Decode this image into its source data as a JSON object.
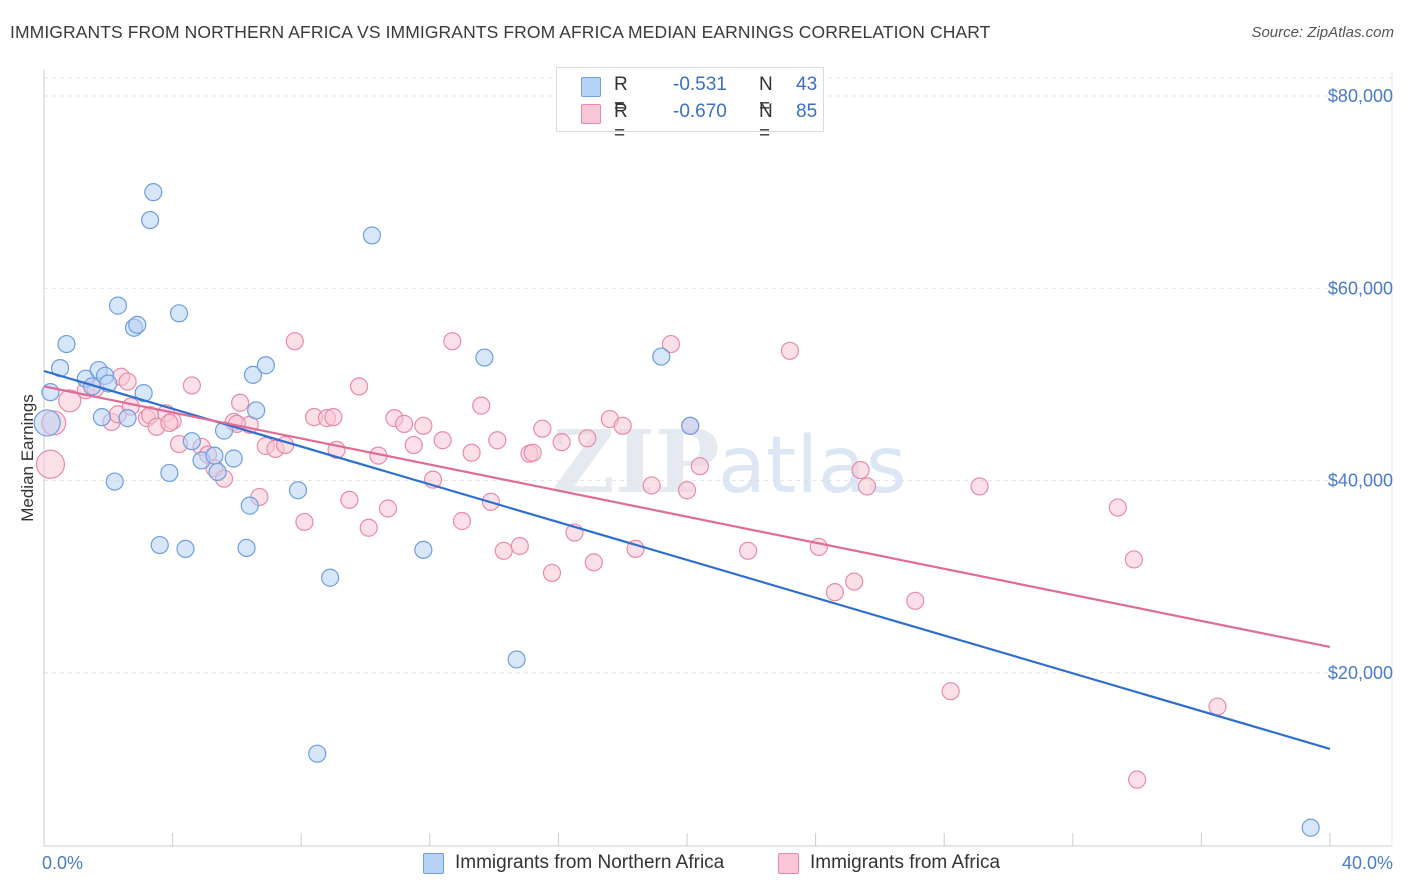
{
  "title": "IMMIGRANTS FROM NORTHERN AFRICA VS IMMIGRANTS FROM AFRICA MEDIAN EARNINGS CORRELATION CHART",
  "source": "Source: ZipAtlas.com",
  "watermark": {
    "zip": "ZIP",
    "atlas": "atlas"
  },
  "legend": {
    "series1": {
      "r_label": "R =",
      "r_value": "-0.531",
      "n_label": "N =",
      "n_value": "43"
    },
    "series2": {
      "r_label": "R =",
      "r_value": "-0.670",
      "n_label": "N =",
      "n_value": "85"
    }
  },
  "colors": {
    "blue_fill": "#b8d2f5",
    "blue_stroke": "#6d9ee0",
    "blue_line": "#2e6fd0",
    "pink_fill": "#f8c6d6",
    "pink_stroke": "#e88ba8",
    "pink_line": "#e06c96",
    "grid": "#e3e3e3",
    "axis_label": "#4a7cc9"
  },
  "chart_data": {
    "type": "scatter",
    "title": "IMMIGRANTS FROM NORTHERN AFRICA VS IMMIGRANTS FROM AFRICA MEDIAN EARNINGS CORRELATION CHART",
    "xlabel": "",
    "ylabel": "Median Earnings",
    "xlim": [
      0,
      40
    ],
    "ylim": [
      2000,
      82000
    ],
    "x_tick_labels": [
      "0.0%",
      "40.0%"
    ],
    "y_ticks": [
      20000,
      40000,
      60000,
      80000
    ],
    "y_tick_labels": [
      "$20,000",
      "$40,000",
      "$60,000",
      "$80,000"
    ],
    "grid": true,
    "legend_position": "top-center",
    "series": [
      {
        "name": "Immigrants from Northern Africa",
        "color": "#b8d2f5",
        "trend": {
          "x": [
            0,
            40
          ],
          "y": [
            51400,
            12100
          ]
        },
        "points": [
          {
            "x": 0.1,
            "y": 46000,
            "r": 13
          },
          {
            "x": 0.2,
            "y": 49200
          },
          {
            "x": 0.5,
            "y": 51700
          },
          {
            "x": 0.7,
            "y": 54200
          },
          {
            "x": 1.3,
            "y": 50600
          },
          {
            "x": 1.5,
            "y": 49800
          },
          {
            "x": 1.7,
            "y": 51500
          },
          {
            "x": 1.8,
            "y": 46600
          },
          {
            "x": 1.9,
            "y": 50900
          },
          {
            "x": 2.2,
            "y": 39900
          },
          {
            "x": 2.3,
            "y": 58200
          },
          {
            "x": 2.6,
            "y": 46500
          },
          {
            "x": 2.8,
            "y": 55900
          },
          {
            "x": 2.9,
            "y": 56200
          },
          {
            "x": 3.1,
            "y": 49100
          },
          {
            "x": 3.3,
            "y": 67100
          },
          {
            "x": 3.4,
            "y": 70000
          },
          {
            "x": 3.6,
            "y": 33300
          },
          {
            "x": 3.9,
            "y": 40800
          },
          {
            "x": 4.2,
            "y": 57400
          },
          {
            "x": 4.4,
            "y": 32900
          },
          {
            "x": 4.6,
            "y": 44100
          },
          {
            "x": 4.9,
            "y": 42100
          },
          {
            "x": 5.3,
            "y": 42600
          },
          {
            "x": 5.4,
            "y": 40900
          },
          {
            "x": 5.6,
            "y": 45200
          },
          {
            "x": 5.9,
            "y": 42300
          },
          {
            "x": 6.3,
            "y": 33000
          },
          {
            "x": 6.4,
            "y": 37400
          },
          {
            "x": 6.5,
            "y": 51000
          },
          {
            "x": 6.6,
            "y": 47300
          },
          {
            "x": 6.9,
            "y": 52000
          },
          {
            "x": 7.9,
            "y": 39000
          },
          {
            "x": 8.5,
            "y": 11600
          },
          {
            "x": 8.9,
            "y": 29900
          },
          {
            "x": 10.2,
            "y": 65500
          },
          {
            "x": 11.8,
            "y": 32800
          },
          {
            "x": 13.7,
            "y": 52800
          },
          {
            "x": 14.7,
            "y": 21400
          },
          {
            "x": 19.2,
            "y": 52900
          },
          {
            "x": 20.1,
            "y": 45700
          },
          {
            "x": 39.4,
            "y": 3900
          },
          {
            "x": 2.0,
            "y": 50100
          }
        ]
      },
      {
        "name": "Immigrants from Africa",
        "color": "#f8c6d6",
        "trend": {
          "x": [
            0,
            40
          ],
          "y": [
            49800,
            22700
          ]
        },
        "points": [
          {
            "x": 0.2,
            "y": 41700,
            "r": 14
          },
          {
            "x": 0.3,
            "y": 46000,
            "r": 12
          },
          {
            "x": 0.8,
            "y": 48300,
            "r": 11
          },
          {
            "x": 1.3,
            "y": 49400
          },
          {
            "x": 1.6,
            "y": 49600
          },
          {
            "x": 2.1,
            "y": 46100
          },
          {
            "x": 2.3,
            "y": 46900
          },
          {
            "x": 2.4,
            "y": 50800
          },
          {
            "x": 2.6,
            "y": 50300
          },
          {
            "x": 2.7,
            "y": 47700
          },
          {
            "x": 3.2,
            "y": 46500
          },
          {
            "x": 3.3,
            "y": 46800
          },
          {
            "x": 3.5,
            "y": 45600
          },
          {
            "x": 3.8,
            "y": 47000
          },
          {
            "x": 4.0,
            "y": 46200
          },
          {
            "x": 4.2,
            "y": 43800
          },
          {
            "x": 4.6,
            "y": 49900
          },
          {
            "x": 4.9,
            "y": 43500
          },
          {
            "x": 5.1,
            "y": 42700
          },
          {
            "x": 5.3,
            "y": 41300
          },
          {
            "x": 5.6,
            "y": 40200
          },
          {
            "x": 5.9,
            "y": 46100
          },
          {
            "x": 6.1,
            "y": 48100
          },
          {
            "x": 6.4,
            "y": 45800
          },
          {
            "x": 6.7,
            "y": 38300
          },
          {
            "x": 6.9,
            "y": 43600
          },
          {
            "x": 7.2,
            "y": 43300
          },
          {
            "x": 7.5,
            "y": 43700
          },
          {
            "x": 7.8,
            "y": 54500
          },
          {
            "x": 8.1,
            "y": 35700
          },
          {
            "x": 8.4,
            "y": 46600
          },
          {
            "x": 8.8,
            "y": 46500
          },
          {
            "x": 9.1,
            "y": 43200
          },
          {
            "x": 9.5,
            "y": 38000
          },
          {
            "x": 9.8,
            "y": 49800
          },
          {
            "x": 10.1,
            "y": 35100
          },
          {
            "x": 10.4,
            "y": 42600
          },
          {
            "x": 10.7,
            "y": 37100
          },
          {
            "x": 10.9,
            "y": 46500
          },
          {
            "x": 11.2,
            "y": 45900
          },
          {
            "x": 11.5,
            "y": 43700
          },
          {
            "x": 11.8,
            "y": 45700
          },
          {
            "x": 12.1,
            "y": 40100
          },
          {
            "x": 12.4,
            "y": 44200
          },
          {
            "x": 12.7,
            "y": 54500
          },
          {
            "x": 13.0,
            "y": 35800
          },
          {
            "x": 13.3,
            "y": 42900
          },
          {
            "x": 13.6,
            "y": 47800
          },
          {
            "x": 13.9,
            "y": 37800
          },
          {
            "x": 14.1,
            "y": 44200
          },
          {
            "x": 14.3,
            "y": 32700
          },
          {
            "x": 14.8,
            "y": 33200
          },
          {
            "x": 15.1,
            "y": 42800
          },
          {
            "x": 15.5,
            "y": 45400
          },
          {
            "x": 15.8,
            "y": 30400
          },
          {
            "x": 16.1,
            "y": 44000
          },
          {
            "x": 16.5,
            "y": 34600
          },
          {
            "x": 16.9,
            "y": 44400
          },
          {
            "x": 17.1,
            "y": 31500
          },
          {
            "x": 17.6,
            "y": 46400
          },
          {
            "x": 18.0,
            "y": 45700
          },
          {
            "x": 18.4,
            "y": 32900
          },
          {
            "x": 18.9,
            "y": 39500
          },
          {
            "x": 19.5,
            "y": 54200
          },
          {
            "x": 20.0,
            "y": 39000
          },
          {
            "x": 20.4,
            "y": 41500
          },
          {
            "x": 21.9,
            "y": 32700
          },
          {
            "x": 23.2,
            "y": 53500
          },
          {
            "x": 24.1,
            "y": 33100
          },
          {
            "x": 24.6,
            "y": 28400
          },
          {
            "x": 25.2,
            "y": 29500
          },
          {
            "x": 25.4,
            "y": 41100
          },
          {
            "x": 25.6,
            "y": 39400
          },
          {
            "x": 27.1,
            "y": 27500
          },
          {
            "x": 28.2,
            "y": 18100
          },
          {
            "x": 29.1,
            "y": 39400
          },
          {
            "x": 34.0,
            "y": 8900
          },
          {
            "x": 33.9,
            "y": 31800
          },
          {
            "x": 33.4,
            "y": 37200
          },
          {
            "x": 36.5,
            "y": 16500
          },
          {
            "x": 15.2,
            "y": 42900
          },
          {
            "x": 9.0,
            "y": 46600
          },
          {
            "x": 6.0,
            "y": 45900
          },
          {
            "x": 3.9,
            "y": 46000
          },
          {
            "x": 20.1,
            "y": 45700
          }
        ]
      }
    ]
  }
}
